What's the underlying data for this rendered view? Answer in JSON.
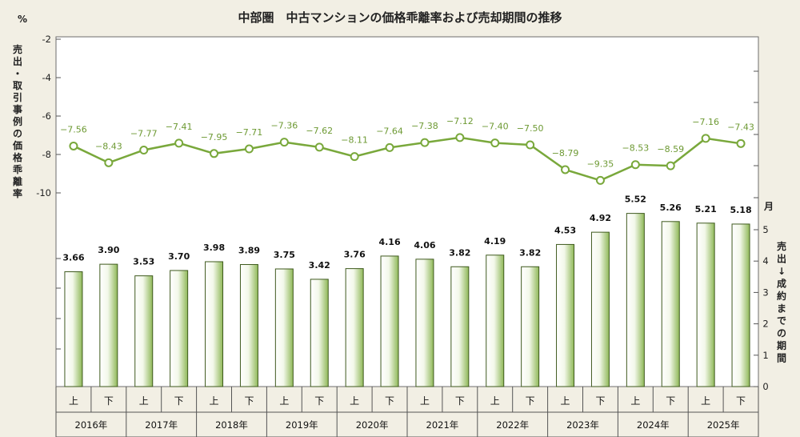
{
  "chart_data": {
    "type": "bar+line",
    "title": "中部圏　中古マンションの価格乖離率および売却期間の推移",
    "left_axis": {
      "unit": "%",
      "label": "売出・取引事例の価格乖離率",
      "ticks": [
        -2,
        -4,
        -6,
        -8,
        -10
      ],
      "ylim": [
        -10,
        -2
      ]
    },
    "right_axis": {
      "unit": "月",
      "label": "売出↓成約までの期間",
      "ticks": [
        0,
        1,
        2,
        3,
        4,
        5
      ],
      "ylim": [
        0,
        5.5
      ]
    },
    "years": [
      "2016年",
      "2017年",
      "2018年",
      "2019年",
      "2020年",
      "2021年",
      "2022年",
      "2023年",
      "2024年",
      "2025年"
    ],
    "half_labels": [
      "上",
      "下"
    ],
    "bars": {
      "name": "売出→成約までの期間",
      "values": [
        3.66,
        3.9,
        3.53,
        3.7,
        3.98,
        3.89,
        3.75,
        3.42,
        3.76,
        4.16,
        4.06,
        3.82,
        4.19,
        3.82,
        4.53,
        4.92,
        5.52,
        5.26,
        5.21,
        5.18
      ],
      "labels": [
        "3.66",
        "3.90",
        "3.53",
        "3.70",
        "3.98",
        "3.89",
        "3.75",
        "3.42",
        "3.76",
        "4.16",
        "4.06",
        "3.82",
        "4.19",
        "3.82",
        "4.53",
        "4.92",
        "5.52",
        "5.26",
        "5.21",
        "5.18"
      ]
    },
    "line": {
      "name": "価格乖離率",
      "values": [
        -7.56,
        -8.43,
        -7.77,
        -7.41,
        -7.95,
        -7.71,
        -7.36,
        -7.62,
        -8.11,
        -7.64,
        -7.38,
        -7.12,
        -7.4,
        -7.5,
        -8.79,
        -9.35,
        -8.53,
        -8.59,
        -7.16,
        -7.43
      ],
      "labels": [
        "−7.56",
        "−8.43",
        "−7.77",
        "−7.41",
        "−7.95",
        "−7.71",
        "−7.36",
        "−7.62",
        "−8.11",
        "−7.64",
        "−7.38",
        "−7.12",
        "−7.40",
        "−7.50",
        "−8.79",
        "−9.35",
        "−8.53",
        "−8.59",
        "−7.16",
        "−7.43"
      ]
    },
    "colors": {
      "line": "#79a83b",
      "bar_edge": "#3f5a1e",
      "bar_light": "#ffffff",
      "bar_dark": "#8fb858",
      "background": "#f2efe4",
      "plot_bg": "#ffffff"
    },
    "grid": false
  }
}
